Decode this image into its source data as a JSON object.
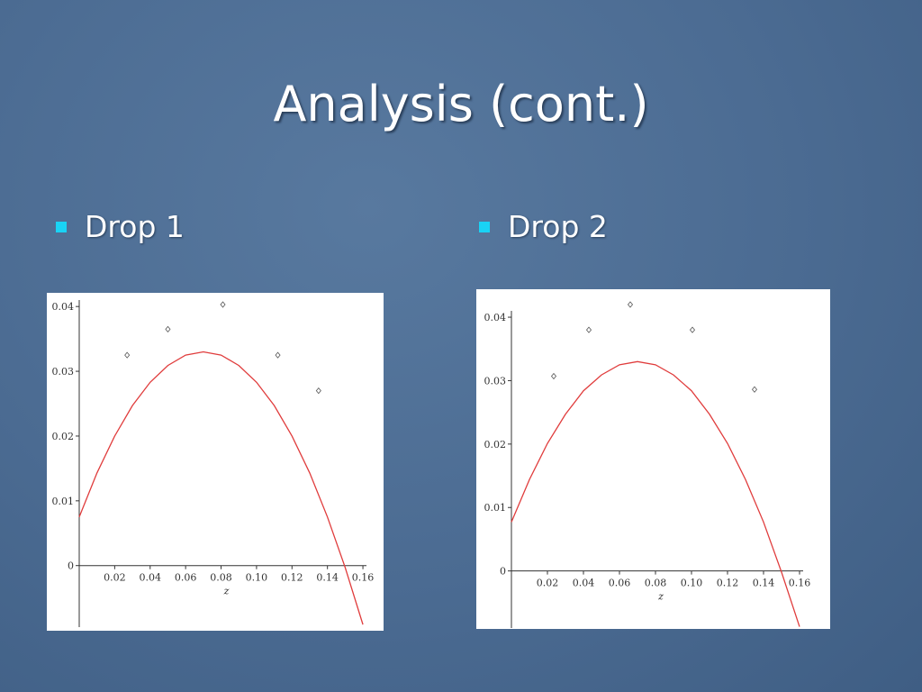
{
  "slide": {
    "title": "Analysis (cont.)",
    "bullets": [
      "Drop 1",
      "Drop 2"
    ]
  },
  "chart_data": [
    {
      "type": "scatter",
      "xlabel": "z",
      "xlim": [
        0,
        0.162
      ],
      "ylim": [
        -0.0095,
        0.041
      ],
      "xticks": [
        0.02,
        0.04,
        0.06,
        0.08,
        {
          "value": 0.1,
          "label": "0.10"
        },
        0.12,
        0.14,
        0.16
      ],
      "yticks": [
        0,
        0.01,
        0.02,
        0.03,
        0.04
      ],
      "points": {
        "color": "#555555",
        "x": [
          0.027,
          0.05,
          0.081,
          0.112,
          0.135
        ],
        "y": [
          0.0325,
          0.0365,
          0.0403,
          0.0325,
          0.027
        ]
      },
      "curve": {
        "color": "#e03c3c",
        "x": [
          0,
          0.01,
          0.02,
          0.03,
          0.04,
          0.05,
          0.06,
          0.07,
          0.08,
          0.09,
          0.1,
          0.11,
          0.12,
          0.13,
          0.14,
          0.15,
          0.16
        ],
        "y": [
          0.0075,
          0.0143,
          0.02,
          0.0247,
          0.0283,
          0.0309,
          0.0325,
          0.033,
          0.0325,
          0.0309,
          0.0283,
          0.0247,
          0.02,
          0.0143,
          0.0075,
          -0.0003,
          -0.0091
        ]
      }
    },
    {
      "type": "scatter",
      "xlabel": "z",
      "xlim": [
        0,
        0.162
      ],
      "ylim": [
        -0.009,
        0.041
      ],
      "xticks": [
        0.02,
        0.04,
        0.06,
        0.08,
        {
          "value": 0.1,
          "label": "0.10"
        },
        0.12,
        0.14,
        0.16
      ],
      "yticks": [
        0,
        0.01,
        0.02,
        0.03,
        0.04
      ],
      "points": {
        "color": "#555555",
        "x": [
          0.0235,
          0.043,
          0.066,
          0.1005,
          0.135
        ],
        "y": [
          0.0307,
          0.038,
          0.042,
          0.038,
          0.0286
        ]
      },
      "curve": {
        "color": "#e03c3c",
        "x": [
          0,
          0.01,
          0.02,
          0.03,
          0.04,
          0.05,
          0.06,
          0.07,
          0.08,
          0.09,
          0.1,
          0.11,
          0.12,
          0.13,
          0.14,
          0.15,
          0.16
        ],
        "y": [
          0.0077,
          0.0144,
          0.0201,
          0.0247,
          0.0284,
          0.0309,
          0.0325,
          0.033,
          0.0325,
          0.0309,
          0.0284,
          0.0247,
          0.0201,
          0.0144,
          0.0077,
          -0.0002,
          -0.0088
        ]
      }
    }
  ]
}
